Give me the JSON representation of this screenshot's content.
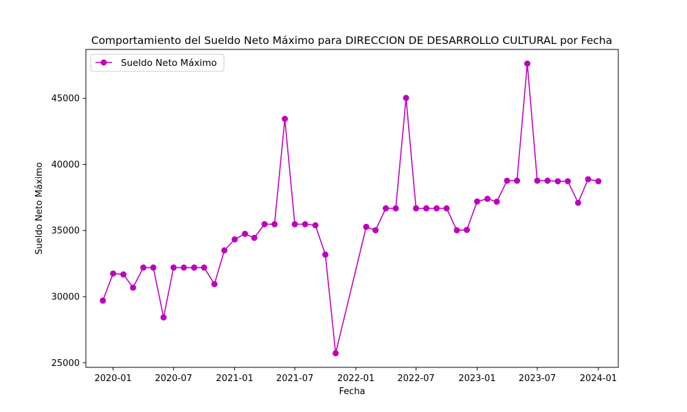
{
  "chart_data": {
    "type": "line",
    "title": "Comportamiento del Sueldo Neto Máximo para DIRECCION DE DESARROLLO CULTURAL por Fecha",
    "xlabel": "Fecha",
    "ylabel": "Sueldo Neto Máximo",
    "xlim": [
      "2019-10-11",
      "2024-03-01"
    ],
    "ylim": [
      24650,
      48700
    ],
    "x_ticks": [
      {
        "date": "2020-01-01",
        "label": "2020-01"
      },
      {
        "date": "2020-07-01",
        "label": "2020-07"
      },
      {
        "date": "2021-01-01",
        "label": "2021-01"
      },
      {
        "date": "2021-07-01",
        "label": "2021-07"
      },
      {
        "date": "2022-01-01",
        "label": "2022-01"
      },
      {
        "date": "2022-07-01",
        "label": "2022-07"
      },
      {
        "date": "2023-01-01",
        "label": "2023-01"
      },
      {
        "date": "2023-07-01",
        "label": "2023-07"
      },
      {
        "date": "2024-01-01",
        "label": "2024-01"
      }
    ],
    "y_ticks": [
      {
        "value": 25000,
        "label": "25000"
      },
      {
        "value": 30000,
        "label": "30000"
      },
      {
        "value": 35000,
        "label": "35000"
      },
      {
        "value": 40000,
        "label": "40000"
      },
      {
        "value": 45000,
        "label": "45000"
      }
    ],
    "grid": false,
    "legend_position": "top-left",
    "series": [
      {
        "name": "Sueldo Neto Máximo",
        "color": "#bf00bf",
        "x": [
          "2019-12-01",
          "2020-01-01",
          "2020-02-01",
          "2020-03-01",
          "2020-04-01",
          "2020-05-01",
          "2020-06-01",
          "2020-07-01",
          "2020-08-01",
          "2020-09-01",
          "2020-10-01",
          "2020-11-01",
          "2020-12-01",
          "2021-01-01",
          "2021-02-01",
          "2021-03-01",
          "2021-04-01",
          "2021-05-01",
          "2021-06-01",
          "2021-07-01",
          "2021-08-01",
          "2021-09-01",
          "2021-10-01",
          "2021-11-01",
          "2022-02-01",
          "2022-03-01",
          "2022-04-01",
          "2022-05-01",
          "2022-06-01",
          "2022-07-01",
          "2022-08-01",
          "2022-09-01",
          "2022-10-01",
          "2022-11-01",
          "2022-12-01",
          "2023-01-01",
          "2023-02-01",
          "2023-03-01",
          "2023-04-01",
          "2023-05-01",
          "2023-06-01",
          "2023-07-01",
          "2023-08-01",
          "2023-09-01",
          "2023-10-01",
          "2023-11-01",
          "2023-12-01",
          "2024-01-01"
        ],
        "values": [
          29700,
          31750,
          31680,
          30680,
          32200,
          32200,
          28430,
          32200,
          32200,
          32200,
          32200,
          30950,
          33500,
          34330,
          34750,
          34450,
          35480,
          35480,
          43450,
          35480,
          35480,
          35400,
          33180,
          25720,
          35280,
          35020,
          36680,
          36680,
          45030,
          36680,
          36680,
          36680,
          36680,
          35020,
          35050,
          37200,
          37400,
          37180,
          38770,
          38770,
          47630,
          38770,
          38770,
          38730,
          38730,
          37100,
          38880,
          38730
        ]
      }
    ]
  }
}
